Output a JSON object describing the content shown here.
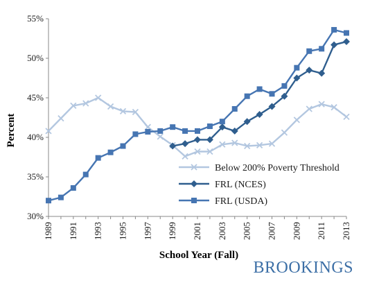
{
  "chart_data": {
    "type": "line",
    "title": "",
    "xlabel": "School Year (Fall)",
    "ylabel": "Percent",
    "x_start": 1989,
    "x_end": 2013,
    "x_tick_labels": [
      "1989",
      "1991",
      "1993",
      "1995",
      "1997",
      "1999",
      "2001",
      "2003",
      "2005",
      "2007",
      "2009",
      "2011",
      "2013"
    ],
    "ylim": [
      30,
      55
    ],
    "y_tick_labels": [
      "30%",
      "35%",
      "40%",
      "45%",
      "50%",
      "55%"
    ],
    "y_tick_values": [
      30,
      35,
      40,
      45,
      50,
      55
    ],
    "grid": false,
    "legend_position": "bottom-right",
    "series": [
      {
        "name": "Below 200% Poverty Threshold",
        "color": "#b3c7e0",
        "marker": "x",
        "x": [
          1989,
          1990,
          1991,
          1992,
          1993,
          1994,
          1995,
          1996,
          1997,
          1998,
          1999,
          2000,
          2001,
          2002,
          2003,
          2004,
          2005,
          2006,
          2007,
          2008,
          2009,
          2010,
          2011,
          2012,
          2013
        ],
        "values": [
          40.8,
          42.4,
          44.0,
          44.3,
          45.0,
          43.9,
          43.3,
          43.2,
          41.3,
          40.1,
          39.0,
          37.6,
          38.2,
          38.2,
          39.1,
          39.3,
          38.9,
          39.0,
          39.2,
          40.6,
          42.2,
          43.6,
          44.2,
          43.8,
          42.6
        ]
      },
      {
        "name": "FRL (NCES)",
        "color": "#2f5e8e",
        "marker": "diamond",
        "x": [
          1999,
          2000,
          2001,
          2002,
          2003,
          2004,
          2005,
          2006,
          2007,
          2008,
          2009,
          2010,
          2011,
          2012,
          2013
        ],
        "values": [
          38.9,
          39.2,
          39.7,
          39.7,
          41.3,
          40.8,
          42.0,
          42.9,
          43.9,
          45.2,
          47.5,
          48.5,
          48.1,
          51.7,
          52.1
        ]
      },
      {
        "name": "FRL (USDA)",
        "color": "#4675b2",
        "marker": "square",
        "x": [
          1989,
          1990,
          1991,
          1992,
          1993,
          1994,
          1995,
          1996,
          1997,
          1998,
          1999,
          2000,
          2001,
          2002,
          2003,
          2004,
          2005,
          2006,
          2007,
          2008,
          2009,
          2010,
          2011,
          2012,
          2013
        ],
        "values": [
          32.0,
          32.4,
          33.6,
          35.3,
          37.4,
          38.1,
          38.9,
          40.4,
          40.7,
          40.8,
          41.3,
          40.8,
          40.8,
          41.4,
          42.0,
          43.6,
          45.2,
          46.1,
          45.5,
          46.5,
          48.8,
          50.9,
          51.2,
          53.6,
          53.2
        ]
      }
    ]
  },
  "branding": {
    "logo_text": "BROOKINGS"
  }
}
